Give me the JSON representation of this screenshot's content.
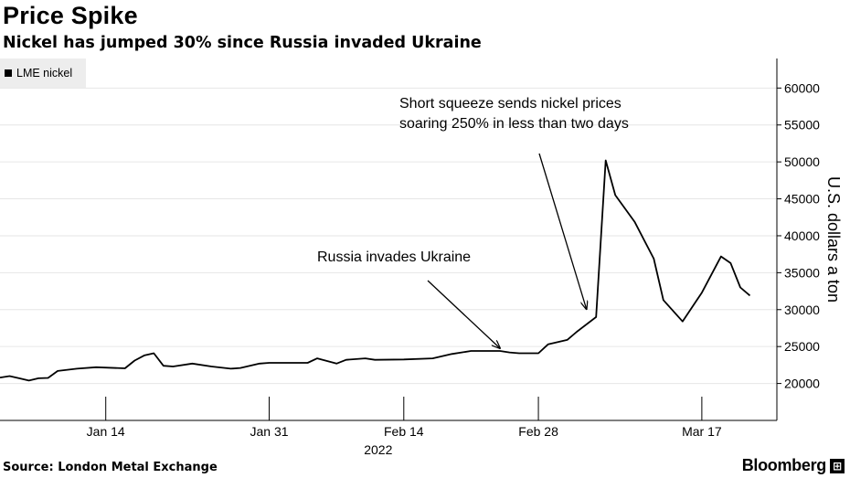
{
  "header": {
    "title": "Price Spike",
    "subtitle": "Nickel has jumped 30% since Russia invaded Ukraine"
  },
  "footer": {
    "source": "Source: London Metal Exchange",
    "brand": "Bloomberg",
    "brand_icon": "bloomberg-terminal-icon"
  },
  "colors": {
    "line": "#000000",
    "grid": "#e6e6e6",
    "legend_bg": "#ededed"
  },
  "chart_data": {
    "type": "line",
    "title": "Price Spike",
    "subtitle": "Nickel has jumped 30% since Russia invaded Ukraine",
    "ylabel": "U.S. dollars a ton",
    "xlabel": "2022",
    "ylim": [
      15000,
      64000
    ],
    "y_axis_side": "right",
    "grid": "horizontal",
    "legend_placement": "top-left",
    "yticks": [
      20000,
      25000,
      30000,
      35000,
      40000,
      45000,
      50000,
      55000,
      60000
    ],
    "xticks": [
      {
        "date": "2022-01-14",
        "label": "Jan 14"
      },
      {
        "date": "2022-01-31",
        "label": "Jan 31"
      },
      {
        "date": "2022-02-14",
        "label": "Feb 14"
      },
      {
        "date": "2022-02-28",
        "label": "Feb 28"
      },
      {
        "date": "2022-03-17",
        "label": "Mar 17"
      }
    ],
    "series": [
      {
        "name": "LME nickel",
        "points": [
          {
            "x": "2022-01-03",
            "y": 20800
          },
          {
            "x": "2022-01-04",
            "y": 21000
          },
          {
            "x": "2022-01-05",
            "y": 20700
          },
          {
            "x": "2022-01-06",
            "y": 20400
          },
          {
            "x": "2022-01-07",
            "y": 20700
          },
          {
            "x": "2022-01-08",
            "y": 20750
          },
          {
            "x": "2022-01-09",
            "y": 21700
          },
          {
            "x": "2022-01-11",
            "y": 22000
          },
          {
            "x": "2022-01-13",
            "y": 22200
          },
          {
            "x": "2022-01-16",
            "y": 22050
          },
          {
            "x": "2022-01-17",
            "y": 23100
          },
          {
            "x": "2022-01-18",
            "y": 23800
          },
          {
            "x": "2022-01-19",
            "y": 24100
          },
          {
            "x": "2022-01-20",
            "y": 22400
          },
          {
            "x": "2022-01-21",
            "y": 22300
          },
          {
            "x": "2022-01-23",
            "y": 22700
          },
          {
            "x": "2022-01-25",
            "y": 22300
          },
          {
            "x": "2022-01-27",
            "y": 22000
          },
          {
            "x": "2022-01-28",
            "y": 22100
          },
          {
            "x": "2022-01-30",
            "y": 22700
          },
          {
            "x": "2022-01-31",
            "y": 22800
          },
          {
            "x": "2022-02-01",
            "y": 22800
          },
          {
            "x": "2022-02-04",
            "y": 22800
          },
          {
            "x": "2022-02-05",
            "y": 23400
          },
          {
            "x": "2022-02-07",
            "y": 22700
          },
          {
            "x": "2022-02-08",
            "y": 23200
          },
          {
            "x": "2022-02-10",
            "y": 23400
          },
          {
            "x": "2022-02-11",
            "y": 23200
          },
          {
            "x": "2022-02-14",
            "y": 23250
          },
          {
            "x": "2022-02-17",
            "y": 23400
          },
          {
            "x": "2022-02-19",
            "y": 24000
          },
          {
            "x": "2022-02-21",
            "y": 24400
          },
          {
            "x": "2022-02-22",
            "y": 24400
          },
          {
            "x": "2022-02-24",
            "y": 24400
          },
          {
            "x": "2022-02-25",
            "y": 24200
          },
          {
            "x": "2022-02-26",
            "y": 24100
          },
          {
            "x": "2022-02-28",
            "y": 24100
          },
          {
            "x": "2022-03-01",
            "y": 25300
          },
          {
            "x": "2022-03-03",
            "y": 25900
          },
          {
            "x": "2022-03-04",
            "y": 27000
          },
          {
            "x": "2022-03-06",
            "y": 29000
          },
          {
            "x": "2022-03-07",
            "y": 50200
          },
          {
            "x": "2022-03-08",
            "y": 45500
          },
          {
            "x": "2022-03-10",
            "y": 41900
          },
          {
            "x": "2022-03-12",
            "y": 36900
          },
          {
            "x": "2022-03-13",
            "y": 31300
          },
          {
            "x": "2022-03-15",
            "y": 28400
          },
          {
            "x": "2022-03-17",
            "y": 32300
          },
          {
            "x": "2022-03-19",
            "y": 37200
          },
          {
            "x": "2022-03-20",
            "y": 36300
          },
          {
            "x": "2022-03-21",
            "y": 33000
          },
          {
            "x": "2022-03-22",
            "y": 31900
          }
        ]
      }
    ],
    "annotations": [
      {
        "id": "invasion",
        "lines": [
          "Russia invades Ukraine"
        ],
        "point": {
          "x": "2022-02-24",
          "y": 24400
        }
      },
      {
        "id": "squeeze",
        "lines": [
          "Short squeeze sends nickel prices",
          "soaring 250% in less than two days"
        ],
        "point": {
          "x": "2022-03-05",
          "y": 29700
        }
      }
    ]
  }
}
